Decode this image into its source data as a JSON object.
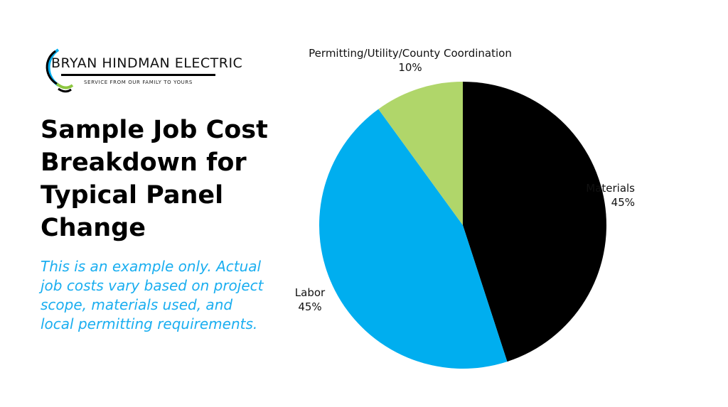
{
  "logo": {
    "title": "BRYAN HINDMAN ELECTRIC",
    "tagline": "SERVICE FROM OUR FAMILY TO YOURS"
  },
  "heading": "Sample Job Cost Breakdown for Typical Panel Change",
  "note": "This is an example only. Actual job costs vary based on project scope, materials used, and local permitting requirements.",
  "chart_data": {
    "type": "pie",
    "title": "",
    "start": "top, clockwise",
    "slices": [
      {
        "label": "Materials",
        "value": 45,
        "display": "45%",
        "color": "#000000"
      },
      {
        "label": "Labor",
        "value": 45,
        "display": "45%",
        "color": "#00aeef"
      },
      {
        "label": "Permitting/Utility/County Coordination",
        "value": 10,
        "display": "10%",
        "color": "#b0d66a"
      }
    ]
  }
}
